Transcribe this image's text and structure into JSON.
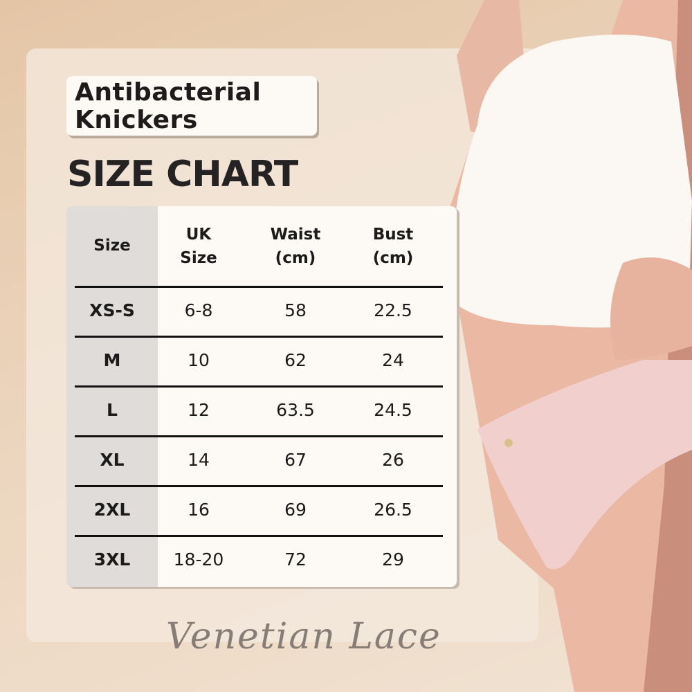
{
  "title": "Antibacterial Knickers",
  "title_lines": [
    "Antibacterial",
    "Knickers"
  ],
  "heading": "SIZE CHART",
  "table": {
    "headers": [
      [
        "Size"
      ],
      [
        "UK",
        "Size"
      ],
      [
        "Waist",
        "(cm)"
      ],
      [
        "Bust",
        "(cm)"
      ]
    ],
    "rows": [
      [
        "XS-S",
        "6-8",
        "58",
        "22.5"
      ],
      [
        "M",
        "10",
        "62",
        "24"
      ],
      [
        "L",
        "12",
        "63.5",
        "24.5"
      ],
      [
        "XL",
        "14",
        "67",
        "26"
      ],
      [
        "2XL",
        "16",
        "69",
        "26.5"
      ],
      [
        "3XL",
        "18-20",
        "72",
        "29"
      ]
    ]
  },
  "brand": "Venetian Lace",
  "colors": {
    "background": "#e8cdb0",
    "panel": "#efe0d0",
    "table": "#fdf9f4",
    "size_column": "#e0dcd9",
    "text": "#1d1b1b",
    "brand": "#857d76"
  }
}
